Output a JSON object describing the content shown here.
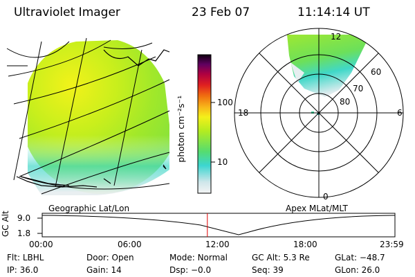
{
  "header": {
    "title": "Ultraviolet Imager",
    "date": "23 Feb 07",
    "time": "11:14:14 UT"
  },
  "colorbar": {
    "unit_label": "photon cm⁻²s⁻¹",
    "ticks": [
      "100",
      "10"
    ]
  },
  "left_panel": {
    "caption": "Geographic Lat/Lon"
  },
  "right_panel": {
    "caption": "Apex MLat/MLT",
    "mlt_labels": [
      "12",
      "18",
      "6",
      "0"
    ],
    "mlat_labels": [
      "60",
      "70",
      "80"
    ]
  },
  "timeline": {
    "ylabel": "GC Alt",
    "y_ticks": [
      "9.0",
      "1.8"
    ],
    "x_ticks": [
      "00:00",
      "06:00",
      "12:00",
      "18:00",
      "23:59"
    ],
    "current_time_fraction": 0.4682,
    "cursor_color": "#e00000"
  },
  "status": {
    "row1": [
      {
        "label": "Flt:",
        "value": "LBHL"
      },
      {
        "label": "Door:",
        "value": "Open"
      },
      {
        "label": "Mode:",
        "value": "Normal"
      },
      {
        "label": "GC Alt:",
        "value": "5.3 Re"
      },
      {
        "label": "GLat:",
        "value": "−48.7"
      }
    ],
    "row2": [
      {
        "label": "IP:",
        "value": "36.0"
      },
      {
        "label": "Gain:",
        "value": "14"
      },
      {
        "label": "Dsp:",
        "value": "−0.0"
      },
      {
        "label": "Seq:",
        "value": "39"
      },
      {
        "label": "GLon:",
        "value": "26.0"
      }
    ]
  }
}
